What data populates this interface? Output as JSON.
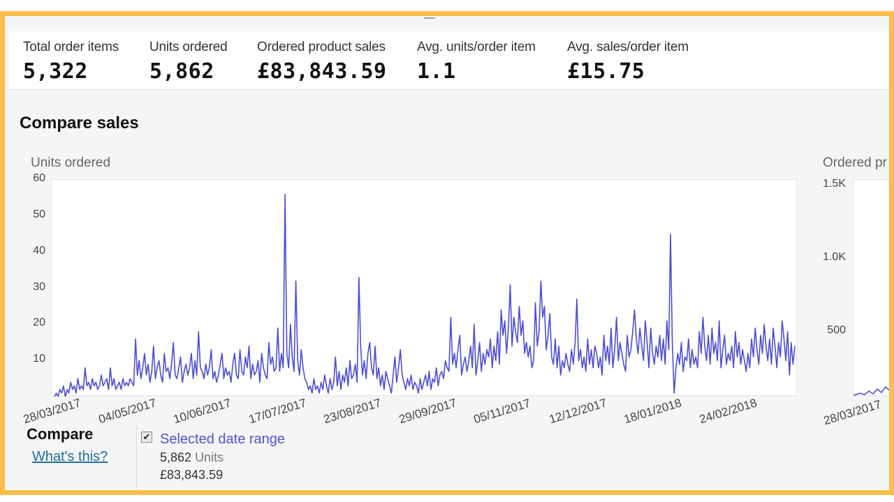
{
  "metrics": [
    {
      "label": "Total order items",
      "value": "5,322"
    },
    {
      "label": "Units ordered",
      "value": "5,862"
    },
    {
      "label": "Ordered product sales",
      "value": "£83,843.59"
    },
    {
      "label": "Avg. units/order item",
      "value": "1.1"
    },
    {
      "label": "Avg. sales/order item",
      "value": "£15.75"
    }
  ],
  "section_title": "Compare sales",
  "compare": {
    "label": "Compare",
    "whats_this": "What's this?",
    "range_label": "Selected date range",
    "units_value": "5,862",
    "units_word": "Units",
    "sales_value": "£83,843.59",
    "checked": true
  },
  "colors": {
    "line": "#4b4bd6",
    "accent_border": "#fbbd4a",
    "link": "#1f6f9e"
  },
  "chart_data": [
    {
      "type": "line",
      "ylabel": "Units ordered",
      "ylim": [
        0,
        60
      ],
      "yticks": [
        "60",
        "50",
        "40",
        "30",
        "20",
        "10"
      ],
      "xticks": [
        "28/03/2017",
        "04/05/2017",
        "10/06/2017",
        "17/07/2017",
        "23/08/2017",
        "29/09/2017",
        "05/11/2017",
        "12/12/2017",
        "18/01/2018",
        "24/02/2018"
      ],
      "series": [
        {
          "values": [
            0,
            1,
            0,
            2,
            1,
            3,
            0,
            2,
            1,
            4,
            2,
            3,
            1,
            5,
            2,
            3,
            2,
            8,
            3,
            4,
            2,
            5,
            3,
            4,
            2,
            3,
            6,
            3,
            4,
            5,
            2,
            8,
            3,
            5,
            2,
            3,
            4,
            2,
            5,
            3,
            4,
            3,
            5,
            4,
            3,
            16,
            6,
            10,
            5,
            8,
            12,
            6,
            9,
            4,
            7,
            14,
            5,
            8,
            10,
            6,
            4,
            12,
            7,
            8,
            5,
            9,
            15,
            6,
            5,
            8,
            11,
            4,
            7,
            9,
            6,
            8,
            12,
            5,
            10,
            6,
            18,
            8,
            7,
            5,
            9,
            6,
            8,
            13,
            5,
            7,
            4,
            6,
            9,
            12,
            5,
            8,
            6,
            7,
            4,
            9,
            12,
            6,
            5,
            13,
            7,
            6,
            11,
            8,
            14,
            5,
            9,
            6,
            7,
            10,
            4,
            12,
            8,
            6,
            5,
            15,
            9,
            11,
            7,
            8,
            19,
            7,
            12,
            8,
            56,
            12,
            8,
            20,
            11,
            7,
            32,
            10,
            6,
            13,
            8,
            5,
            4,
            2,
            3,
            1,
            5,
            2,
            3,
            1,
            4,
            2,
            6,
            3,
            1,
            5,
            2,
            4,
            11,
            3,
            7,
            2,
            6,
            4,
            8,
            3,
            10,
            5,
            6,
            9,
            4,
            33,
            14,
            6,
            10,
            5,
            12,
            15,
            8,
            6,
            14,
            5,
            8,
            3,
            6,
            2,
            7,
            5,
            3,
            1,
            6,
            11,
            4,
            8,
            13,
            6,
            4,
            2,
            5,
            3,
            6,
            2,
            4,
            3,
            1,
            5,
            2,
            4,
            6,
            3,
            7,
            2,
            5,
            4,
            8,
            3,
            6,
            7,
            5,
            10,
            8,
            7,
            22,
            9,
            12,
            8,
            13,
            17,
            6,
            9,
            11,
            7,
            10,
            14,
            8,
            20,
            6,
            10,
            15,
            7,
            12,
            9,
            13,
            11,
            16,
            8,
            14,
            10,
            18,
            9,
            24,
            17,
            21,
            12,
            19,
            31,
            14,
            22,
            18,
            15,
            25,
            17,
            21,
            12,
            15,
            11,
            14,
            8,
            10,
            26,
            14,
            18,
            32,
            22,
            25,
            13,
            17,
            23,
            11,
            9,
            16,
            8,
            14,
            6,
            10,
            8,
            12,
            9,
            7,
            13,
            9,
            15,
            27,
            10,
            13,
            8,
            11,
            7,
            16,
            9,
            13,
            8,
            14,
            12,
            8,
            11,
            6,
            17,
            10,
            14,
            9,
            19,
            8,
            13,
            22,
            10,
            15,
            12,
            9,
            7,
            17,
            11,
            13,
            18,
            24,
            16,
            12,
            19,
            14,
            10,
            21,
            15,
            8,
            19,
            12,
            9,
            14,
            11,
            17,
            10,
            16,
            9,
            21,
            13,
            45,
            15,
            1,
            8,
            12,
            9,
            15,
            7,
            11,
            10,
            16,
            8,
            13,
            9,
            11,
            8,
            18,
            12,
            22,
            14,
            10,
            17,
            9,
            19,
            12,
            15,
            10,
            21,
            8,
            13,
            17,
            9,
            12,
            10,
            14,
            8,
            18,
            11,
            15,
            9,
            13,
            10,
            7,
            12,
            8,
            16,
            11,
            19,
            13,
            9,
            17,
            12,
            20,
            14,
            10,
            16,
            9,
            19,
            14,
            8,
            15,
            11,
            21,
            16,
            10,
            18,
            6,
            15,
            9,
            14
          ]
        }
      ]
    },
    {
      "type": "line",
      "ylabel": "Ordered pr",
      "yticks": [
        "1.5K",
        "1.0K",
        "500"
      ],
      "xticks": [
        "28/03/2017"
      ]
    }
  ]
}
